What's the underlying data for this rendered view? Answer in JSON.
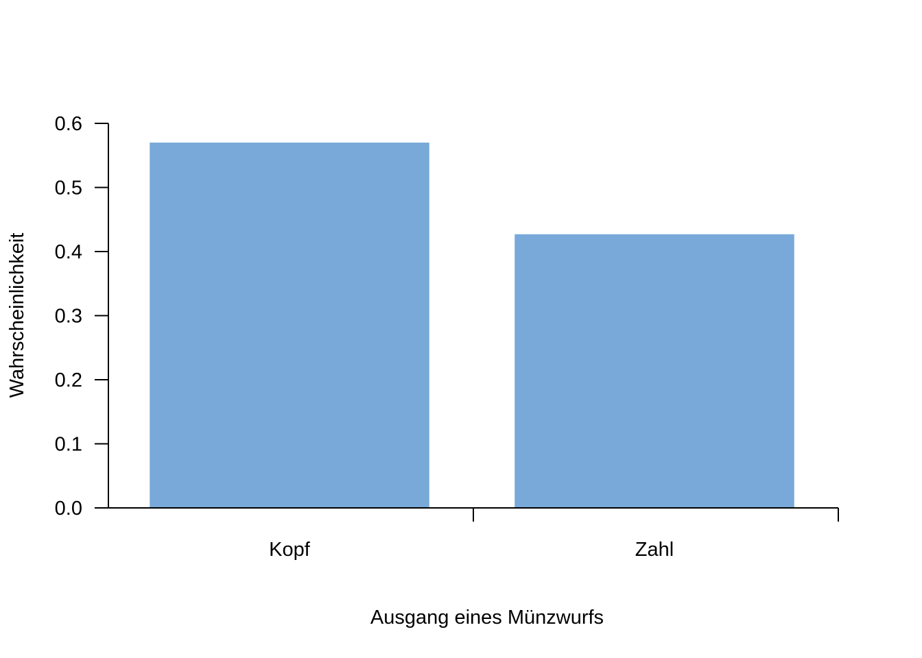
{
  "chart_data": {
    "type": "bar",
    "title": "",
    "xlabel": "Ausgang eines Münzwurfs",
    "ylabel": "Wahrscheinlichkeit",
    "categories": [
      "Kopf",
      "Zahl"
    ],
    "values": [
      0.57,
      0.427
    ],
    "ylim": [
      0,
      0.6
    ],
    "yticks": [
      0.0,
      0.1,
      0.2,
      0.3,
      0.4,
      0.5,
      0.6
    ],
    "ytick_labels": [
      "0.0",
      "0.1",
      "0.2",
      "0.3",
      "0.4",
      "0.5",
      "0.6"
    ],
    "grid": false,
    "legend": "none",
    "bar_color": "#78a9d9"
  }
}
